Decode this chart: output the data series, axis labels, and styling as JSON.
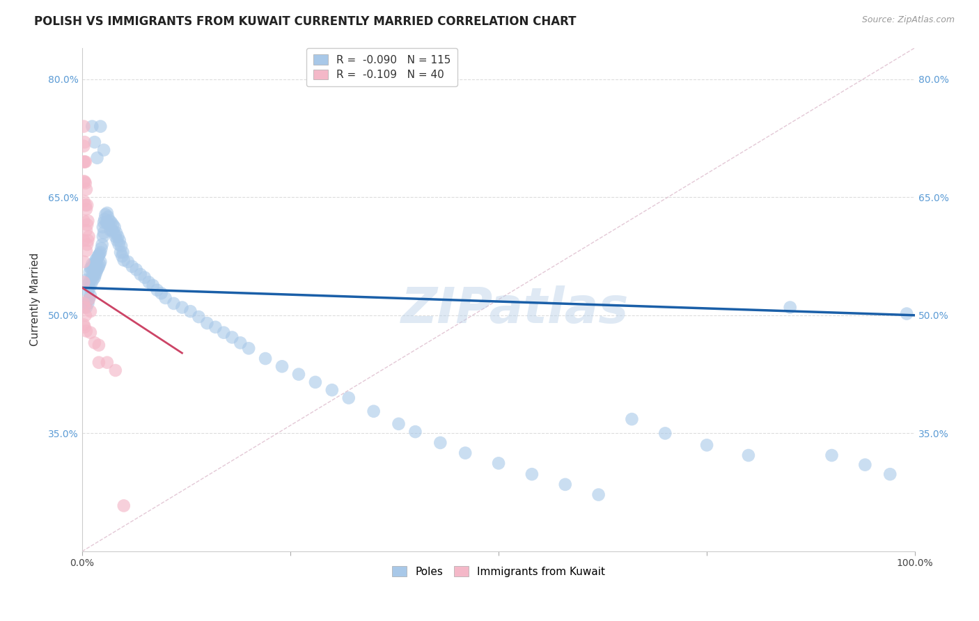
{
  "title": "POLISH VS IMMIGRANTS FROM KUWAIT CURRENTLY MARRIED CORRELATION CHART",
  "source_text": "Source: ZipAtlas.com",
  "ylabel": "Currently Married",
  "watermark": "ZIPatlas",
  "legend": {
    "blue_r_label": "R = ",
    "blue_r_val": "-0.090",
    "blue_n": "N = 115",
    "pink_r_label": "R = ",
    "pink_r_val": "-0.109",
    "pink_n": "N = 40",
    "poles_label": "Poles",
    "kuwait_label": "Immigrants from Kuwait"
  },
  "blue_color": "#a8c8e8",
  "pink_color": "#f4b8c8",
  "blue_line_color": "#1a5fa8",
  "pink_line_color": "#cc4466",
  "diag_line_color": "#ddbbcc",
  "ylim": [
    0.2,
    0.84
  ],
  "xlim": [
    0.0,
    1.0
  ],
  "yticks": [
    0.35,
    0.5,
    0.65,
    0.8
  ],
  "ytick_labels": [
    "35.0%",
    "50.0%",
    "65.0%",
    "80.0%"
  ],
  "blue_scatter_x": [
    0.005,
    0.005,
    0.007,
    0.007,
    0.008,
    0.008,
    0.009,
    0.009,
    0.01,
    0.01,
    0.01,
    0.011,
    0.011,
    0.012,
    0.012,
    0.013,
    0.013,
    0.014,
    0.014,
    0.015,
    0.015,
    0.016,
    0.016,
    0.017,
    0.017,
    0.018,
    0.018,
    0.019,
    0.019,
    0.02,
    0.02,
    0.021,
    0.021,
    0.022,
    0.022,
    0.023,
    0.024,
    0.025,
    0.025,
    0.026,
    0.026,
    0.027,
    0.028,
    0.029,
    0.03,
    0.03,
    0.031,
    0.032,
    0.033,
    0.034,
    0.035,
    0.036,
    0.037,
    0.038,
    0.039,
    0.04,
    0.041,
    0.042,
    0.043,
    0.044,
    0.045,
    0.046,
    0.047,
    0.048,
    0.049,
    0.05,
    0.055,
    0.06,
    0.065,
    0.07,
    0.075,
    0.08,
    0.085,
    0.09,
    0.095,
    0.1,
    0.11,
    0.12,
    0.13,
    0.14,
    0.15,
    0.16,
    0.17,
    0.18,
    0.19,
    0.2,
    0.22,
    0.24,
    0.26,
    0.28,
    0.3,
    0.32,
    0.35,
    0.38,
    0.4,
    0.43,
    0.46,
    0.5,
    0.54,
    0.58,
    0.62,
    0.66,
    0.7,
    0.75,
    0.8,
    0.85,
    0.9,
    0.94,
    0.97,
    0.99,
    0.012,
    0.015,
    0.018,
    0.022,
    0.026
  ],
  "blue_scatter_y": [
    0.545,
    0.51,
    0.53,
    0.515,
    0.54,
    0.52,
    0.555,
    0.535,
    0.56,
    0.545,
    0.525,
    0.56,
    0.54,
    0.565,
    0.55,
    0.56,
    0.545,
    0.565,
    0.55,
    0.565,
    0.548,
    0.57,
    0.552,
    0.568,
    0.555,
    0.572,
    0.558,
    0.575,
    0.56,
    0.576,
    0.562,
    0.578,
    0.565,
    0.58,
    0.568,
    0.585,
    0.59,
    0.6,
    0.612,
    0.618,
    0.605,
    0.622,
    0.628,
    0.618,
    0.63,
    0.618,
    0.625,
    0.615,
    0.62,
    0.608,
    0.618,
    0.608,
    0.615,
    0.605,
    0.612,
    0.6,
    0.605,
    0.595,
    0.6,
    0.59,
    0.595,
    0.58,
    0.588,
    0.575,
    0.58,
    0.57,
    0.568,
    0.562,
    0.558,
    0.552,
    0.548,
    0.542,
    0.538,
    0.532,
    0.528,
    0.522,
    0.515,
    0.51,
    0.505,
    0.498,
    0.49,
    0.485,
    0.478,
    0.472,
    0.465,
    0.458,
    0.445,
    0.435,
    0.425,
    0.415,
    0.405,
    0.395,
    0.378,
    0.362,
    0.352,
    0.338,
    0.325,
    0.312,
    0.298,
    0.285,
    0.272,
    0.368,
    0.35,
    0.335,
    0.322,
    0.51,
    0.322,
    0.31,
    0.298,
    0.502,
    0.74,
    0.72,
    0.7,
    0.74,
    0.71
  ],
  "pink_scatter_x": [
    0.002,
    0.002,
    0.002,
    0.002,
    0.002,
    0.002,
    0.002,
    0.002,
    0.002,
    0.002,
    0.002,
    0.003,
    0.003,
    0.003,
    0.003,
    0.003,
    0.004,
    0.004,
    0.004,
    0.004,
    0.005,
    0.005,
    0.005,
    0.005,
    0.005,
    0.006,
    0.006,
    0.006,
    0.007,
    0.007,
    0.008,
    0.008,
    0.01,
    0.01,
    0.015,
    0.02,
    0.02,
    0.03,
    0.04,
    0.05
  ],
  "pink_scatter_y": [
    0.74,
    0.715,
    0.695,
    0.67,
    0.645,
    0.62,
    0.595,
    0.568,
    0.542,
    0.515,
    0.488,
    0.72,
    0.695,
    0.67,
    0.51,
    0.485,
    0.695,
    0.668,
    0.64,
    0.5,
    0.66,
    0.635,
    0.608,
    0.582,
    0.48,
    0.64,
    0.615,
    0.59,
    0.62,
    0.595,
    0.6,
    0.52,
    0.505,
    0.478,
    0.465,
    0.462,
    0.44,
    0.44,
    0.43,
    0.258
  ],
  "blue_trend_x": [
    0.0,
    1.0
  ],
  "blue_trend_y": [
    0.535,
    0.5
  ],
  "pink_trend_x": [
    0.0,
    0.12
  ],
  "pink_trend_y": [
    0.535,
    0.452
  ],
  "diag_line_x": [
    0.0,
    1.0
  ],
  "diag_line_y": [
    0.2,
    0.84
  ],
  "title_fontsize": 12,
  "axis_label_fontsize": 11,
  "tick_fontsize": 10,
  "source_fontsize": 9
}
